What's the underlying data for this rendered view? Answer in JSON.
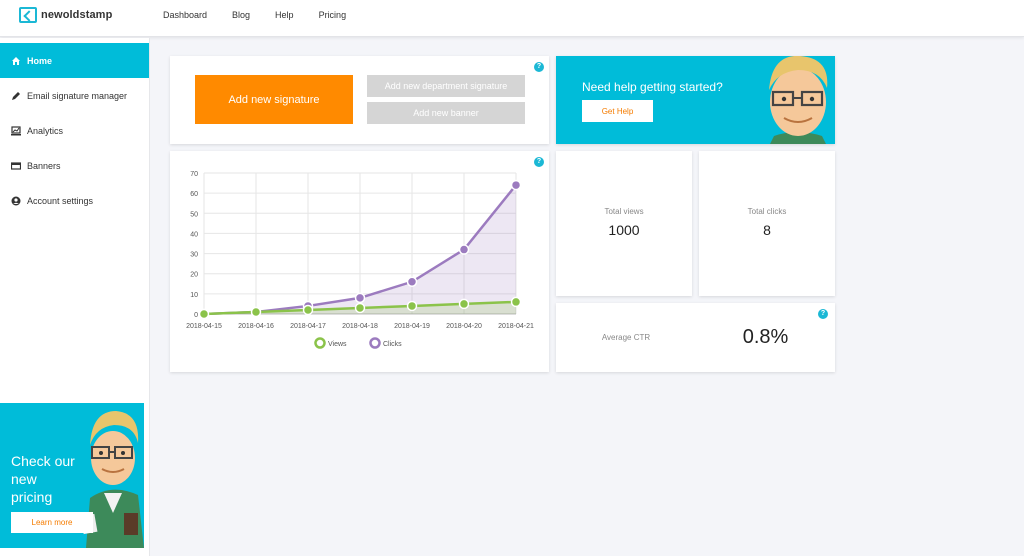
{
  "app": {
    "logo_text": "newoldstamp"
  },
  "nav": {
    "items": [
      "Dashboard",
      "Blog",
      "Help",
      "Pricing"
    ]
  },
  "sidebar": {
    "items": [
      {
        "label": "Home",
        "icon": "home-icon"
      },
      {
        "label": "Email signature manager",
        "icon": "pen-icon"
      },
      {
        "label": "Analytics",
        "icon": "analytics-icon"
      },
      {
        "label": "Banners",
        "icon": "banner-icon"
      },
      {
        "label": "Account settings",
        "icon": "user-icon"
      }
    ],
    "promo": {
      "text": "Check our new pricing",
      "button": "Learn more"
    }
  },
  "actions": {
    "add_signature": "Add new signature",
    "add_department": "Add new department signature",
    "add_banner": "Add new banner"
  },
  "help_card": {
    "title": "Need help getting started?",
    "button": "Get Help"
  },
  "stats": {
    "total_views_label": "Total views",
    "total_views": "1000",
    "total_clicks_label": "Total clicks",
    "total_clicks": "8",
    "avg_ctr_label": "Average CTR",
    "avg_ctr": "0.8%"
  },
  "help_mark": "?",
  "colors": {
    "accent": "#00bcd9",
    "orange": "#ff8a00",
    "views": "#8bc34a",
    "clicks": "#9c7bbf"
  },
  "chart_data": {
    "type": "line",
    "x": [
      "2018-04-15",
      "2018-04-16",
      "2018-04-17",
      "2018-04-18",
      "2018-04-19",
      "2018-04-20",
      "2018-04-21"
    ],
    "ylim": [
      0,
      70
    ],
    "yticks": [
      0,
      10,
      20,
      30,
      40,
      50,
      60,
      70
    ],
    "grid": true,
    "legend": "bottom",
    "series": [
      {
        "name": "Views",
        "values": [
          0,
          1,
          2,
          3,
          4,
          5,
          6
        ],
        "color": "#8bc34a"
      },
      {
        "name": "Clicks",
        "values": [
          0,
          1,
          4,
          8,
          16,
          32,
          64
        ],
        "color": "#9c7bbf"
      }
    ]
  }
}
